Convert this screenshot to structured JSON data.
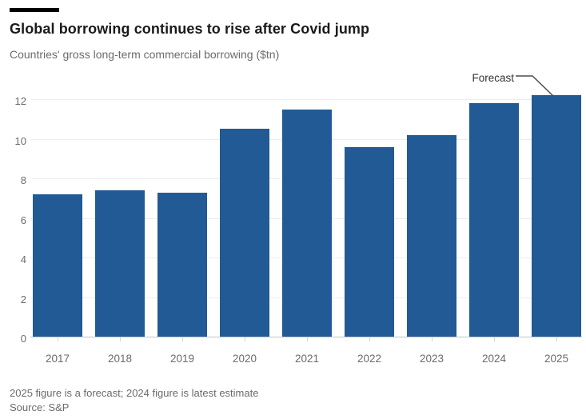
{
  "header": {
    "title": "Global borrowing continues to rise after Covid jump",
    "subtitle": "Countries' gross long-term commercial borrowing ($tn)"
  },
  "chart_data": {
    "type": "bar",
    "title": "Global borrowing continues to rise after Covid jump",
    "subtitle": "Countries' gross long-term commercial borrowing ($tn)",
    "categories": [
      "2017",
      "2018",
      "2019",
      "2020",
      "2021",
      "2022",
      "2023",
      "2024",
      "2025"
    ],
    "values": [
      7.2,
      7.4,
      7.3,
      10.5,
      11.5,
      9.6,
      10.2,
      11.8,
      12.2
    ],
    "xlabel": "",
    "ylabel": "$tn",
    "ylim": [
      0,
      12
    ],
    "yticks": [
      0,
      2,
      4,
      6,
      8,
      10,
      12
    ],
    "grid": "horizontal",
    "legend": "none",
    "bar_color": "#215a94",
    "annotation": {
      "label": "Forecast",
      "target": "2025"
    }
  },
  "footer": {
    "note": "2025 figure is a forecast; 2024 figure is latest estimate",
    "source": "Source: S&P"
  },
  "colors": {
    "bar": "#215a94",
    "title_text": "#1a1a1a",
    "muted_text": "#6b6b6b",
    "gridline": "#ededed",
    "axis_line": "#c4c4c4",
    "tick": "#d6d6d6",
    "annotation_line": "#4d4d4d",
    "top_rule": "#000000"
  }
}
